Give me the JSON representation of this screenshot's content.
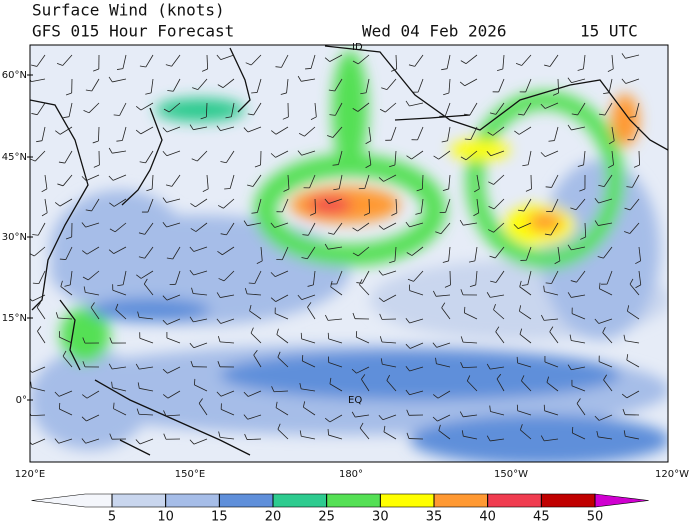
{
  "header": {
    "title": "Surface Wind (knots)",
    "subtitle": "GFS 015 Hour Forecast",
    "date": "Wed 04 Feb 2026",
    "time": "15 UTC"
  },
  "map": {
    "lat_labels": [
      "60°N",
      "45°N",
      "30°N",
      "15°N",
      "0°"
    ],
    "lon_labels": [
      "120°E",
      "150°E",
      "180°",
      "150°W",
      "120°W"
    ],
    "annotations": [
      "ID",
      "EQ"
    ]
  },
  "colorbar": {
    "ticks": [
      5,
      10,
      15,
      20,
      25,
      30,
      35,
      40,
      45,
      50
    ],
    "colors": [
      "#f4f6fb",
      "#c9d6ee",
      "#a6bde8",
      "#5f8fda",
      "#2ecb8f",
      "#55e055",
      "#ffff00",
      "#ff9933",
      "#f03c50",
      "#c00000",
      "#d000d0"
    ]
  }
}
